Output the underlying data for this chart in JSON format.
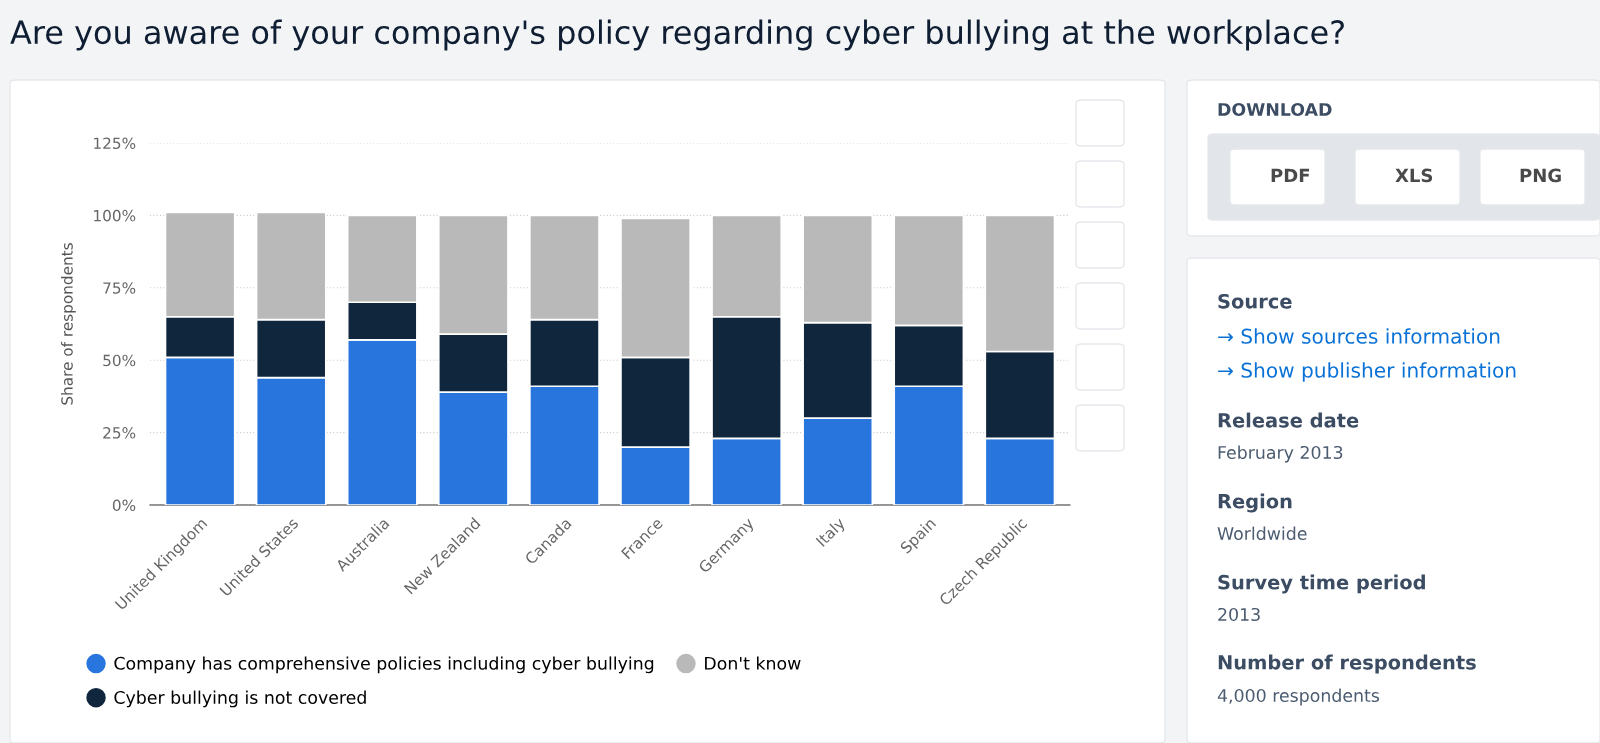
{
  "chart_data": {
    "type": "bar",
    "title": "Are you aware of your company's policy regarding cyber bullying at the workplace?",
    "ylabel": "Share of respondents",
    "categories": [
      "United Kingdom",
      "United States",
      "Australia",
      "New Zealand",
      "Canada",
      "France",
      "Germany",
      "Italy",
      "Spain",
      "Czech Republic"
    ],
    "stacked": true,
    "series": [
      {
        "name": "Company has comprehensive policies including cyber bullying",
        "color": "#2876dd",
        "values": [
          51,
          44,
          57,
          39,
          41,
          20,
          23,
          30,
          41,
          23
        ]
      },
      {
        "name": "Cyber bullying is not covered",
        "color": "#10263d",
        "values": [
          14,
          20,
          13,
          20,
          23,
          31,
          42,
          33,
          21,
          30
        ]
      },
      {
        "name": "Don't know",
        "color": "#b9b9b9",
        "values": [
          36,
          37,
          30,
          41,
          36,
          48,
          35,
          37,
          38,
          47
        ]
      }
    ],
    "ylim": [
      0,
      125
    ],
    "yticks": [
      {
        "value": 0,
        "label": "0%"
      },
      {
        "value": 25,
        "label": "25%"
      },
      {
        "value": 50,
        "label": "50%"
      },
      {
        "value": 75,
        "label": "75%"
      },
      {
        "value": 100,
        "label": "100%"
      },
      {
        "value": 125,
        "label": "125%"
      }
    ],
    "grid": "y",
    "legend": "bottom",
    "annotations": [
      "DOWNLOAD",
      "PDF",
      "XLS",
      "PNG",
      "Source",
      "→ Show sources information",
      "→ Show publisher information",
      "Release date",
      "February 2013",
      "Region",
      "Worldwide",
      "Survey time period",
      "2013",
      "Number of respondents",
      "4,000 respondents"
    ]
  }
}
